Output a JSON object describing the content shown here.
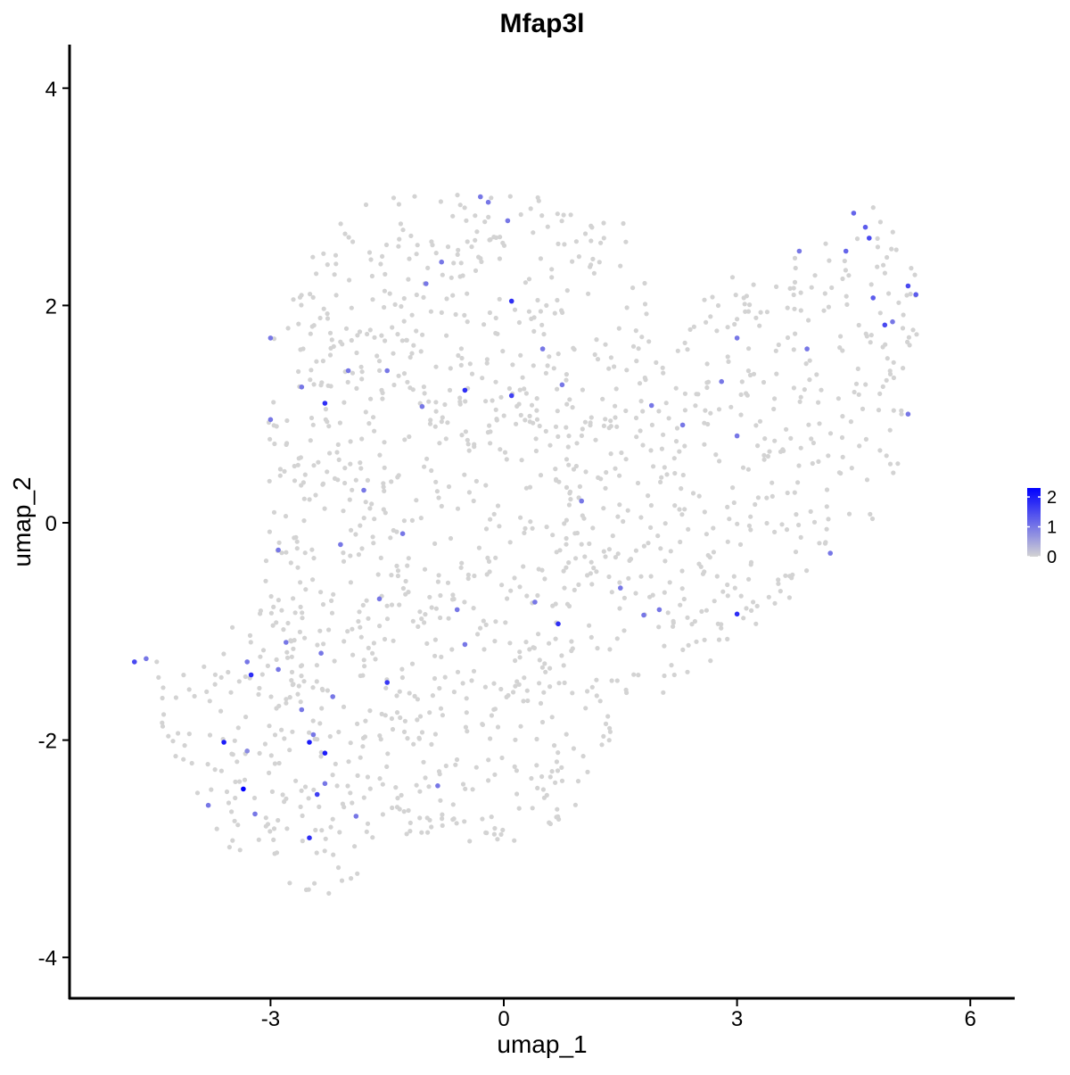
{
  "chart_data": {
    "type": "scatter",
    "title": "Mfap3l",
    "xlabel": "umap_1",
    "ylabel": "umap_2",
    "xlim": [
      -5.6,
      6.5
    ],
    "ylim": [
      -4.4,
      4.4
    ],
    "xticks": [
      -3,
      0,
      3,
      6
    ],
    "yticks": [
      -4,
      -2,
      0,
      2,
      4
    ],
    "xtick_labels": [
      "-3",
      "0",
      "3",
      "6"
    ],
    "ytick_labels": [
      "-4",
      "-2",
      "0",
      "2",
      "4"
    ],
    "grid": false,
    "colorscale": {
      "low_color": "#d3d3d3",
      "high_color": "#0000ff",
      "min": 0,
      "max": 2.3,
      "ticks": [
        0,
        1,
        2
      ],
      "tick_labels": [
        "0",
        "1",
        "2"
      ],
      "legend_position": "right"
    },
    "background_cell_count": 1500,
    "background_cell_color": "#d3d3d3",
    "expressing_points": [
      [
        -4.75,
        -1.28,
        1.5
      ],
      [
        -4.6,
        -1.25,
        1.0
      ],
      [
        -3.6,
        -2.02,
        2.0
      ],
      [
        -3.35,
        -2.45,
        2.3
      ],
      [
        -3.3,
        -1.28,
        1.0
      ],
      [
        -3.25,
        -1.4,
        1.8
      ],
      [
        -3.3,
        -2.1,
        0.8
      ],
      [
        -3.2,
        -2.68,
        1.0
      ],
      [
        -2.8,
        -1.1,
        1.0
      ],
      [
        -2.5,
        -2.02,
        2.0
      ],
      [
        -2.3,
        -2.12,
        2.0
      ],
      [
        -2.4,
        -2.5,
        1.6
      ],
      [
        -2.5,
        -2.9,
        1.8
      ],
      [
        -2.45,
        -1.95,
        1.0
      ],
      [
        -2.6,
        -1.72,
        1.0
      ],
      [
        -2.35,
        -1.2,
        1.0
      ],
      [
        -2.3,
        -2.4,
        1.0
      ],
      [
        -2.2,
        -1.6,
        1.0
      ],
      [
        -1.6,
        -0.7,
        1.0
      ],
      [
        -1.5,
        -1.47,
        1.7
      ],
      [
        -1.3,
        -0.1,
        1.0
      ],
      [
        -1.05,
        1.07,
        1.0
      ],
      [
        -0.85,
        -2.42,
        1.0
      ],
      [
        -0.6,
        -0.8,
        1.0
      ],
      [
        -0.5,
        -1.12,
        1.0
      ],
      [
        -0.5,
        1.22,
        1.8
      ],
      [
        0.1,
        2.04,
        1.8
      ],
      [
        0.1,
        1.17,
        1.6
      ],
      [
        0.4,
        -0.73,
        1.0
      ],
      [
        0.7,
        -0.93,
        1.8
      ],
      [
        0.5,
        1.6,
        1.0
      ],
      [
        0.75,
        1.27,
        1.0
      ],
      [
        1.5,
        -0.6,
        1.0
      ],
      [
        1.8,
        -0.85,
        1.0
      ],
      [
        2.0,
        -0.8,
        1.0
      ],
      [
        2.8,
        1.3,
        1.0
      ],
      [
        3.0,
        -0.84,
        1.8
      ],
      [
        3.0,
        1.7,
        1.0
      ],
      [
        3.0,
        0.8,
        1.0
      ],
      [
        4.2,
        -0.28,
        1.0
      ],
      [
        4.4,
        2.5,
        1.2
      ],
      [
        4.5,
        2.85,
        1.2
      ],
      [
        4.7,
        2.62,
        1.5
      ],
      [
        4.65,
        2.72,
        1.3
      ],
      [
        4.75,
        2.07,
        1.3
      ],
      [
        4.9,
        1.82,
        1.5
      ],
      [
        5.2,
        2.18,
        1.5
      ],
      [
        5.3,
        2.1,
        1.3
      ],
      [
        5.2,
        1.0,
        1.0
      ],
      [
        5.0,
        1.85,
        1.0
      ],
      [
        -3.0,
        1.7,
        1.0
      ],
      [
        -2.6,
        1.25,
        1.0
      ],
      [
        -2.3,
        1.1,
        1.8
      ],
      [
        -2.0,
        1.4,
        1.0
      ],
      [
        -1.5,
        1.4,
        1.0
      ],
      [
        -1.8,
        0.3,
        1.0
      ],
      [
        -3.0,
        0.95,
        1.0
      ],
      [
        -2.9,
        -0.25,
        1.0
      ],
      [
        -2.1,
        -0.2,
        1.0
      ],
      [
        -1.0,
        2.2,
        1.0
      ],
      [
        -0.8,
        2.4,
        1.0
      ],
      [
        -0.3,
        3.0,
        1.0
      ],
      [
        -0.2,
        2.95,
        1.0
      ],
      [
        0.05,
        2.78,
        1.0
      ],
      [
        1.9,
        1.08,
        1.0
      ],
      [
        2.3,
        0.9,
        1.0
      ],
      [
        3.9,
        1.6,
        1.0
      ],
      [
        3.8,
        2.5,
        1.0
      ],
      [
        -1.9,
        -2.7,
        1.0
      ],
      [
        -2.9,
        -1.35,
        1.0
      ],
      [
        -3.8,
        -2.6,
        1.0
      ],
      [
        1.0,
        0.2,
        1.0
      ]
    ]
  }
}
